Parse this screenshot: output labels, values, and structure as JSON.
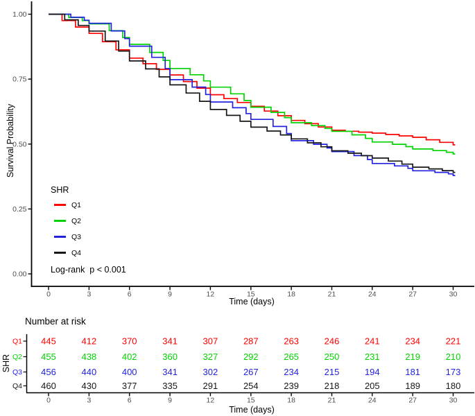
{
  "plot": {
    "y_axis": {
      "label": "Survival Probability",
      "tick_values": [
        1.0,
        0.75,
        0.5,
        0.25,
        0.0
      ],
      "tick_labels": [
        "1.00",
        "0.75",
        "0.50",
        "0.25",
        "0.00"
      ]
    },
    "x_axis": {
      "label": "Time (days)",
      "tick_values": [
        0,
        3,
        6,
        9,
        12,
        15,
        18,
        21,
        24,
        27,
        30
      ],
      "tick_labels": [
        "0",
        "3",
        "6",
        "9",
        "12",
        "15",
        "18",
        "21",
        "24",
        "27",
        "30"
      ]
    },
    "legend": {
      "title": "SHR",
      "items": [
        {
          "label": "Q1",
          "color": "#FF0000"
        },
        {
          "label": "Q2",
          "color": "#00D400"
        },
        {
          "label": "Q3",
          "color": "#2222E0"
        },
        {
          "label": "Q4",
          "color": "#161616"
        }
      ]
    },
    "annotation": "Log-rank  p < 0.001"
  },
  "risk_table": {
    "title": "Number at risk",
    "axis_label": "SHR",
    "x_label": "Time (days)",
    "times": [
      0,
      3,
      6,
      9,
      12,
      15,
      18,
      21,
      24,
      27,
      30
    ],
    "rows": [
      {
        "label": "Q1",
        "color": "#FF0000",
        "values": [
          445,
          412,
          370,
          341,
          307,
          287,
          263,
          246,
          241,
          234,
          221
        ]
      },
      {
        "label": "Q2",
        "color": "#00D400",
        "values": [
          455,
          438,
          402,
          360,
          327,
          292,
          265,
          250,
          231,
          219,
          210
        ]
      },
      {
        "label": "Q3",
        "color": "#2222E0",
        "values": [
          456,
          440,
          400,
          341,
          302,
          267,
          234,
          215,
          194,
          181,
          173
        ]
      },
      {
        "label": "Q4",
        "color": "#161616",
        "values": [
          460,
          430,
          377,
          335,
          291,
          254,
          239,
          218,
          205,
          189,
          180
        ]
      }
    ]
  },
  "chart_data": {
    "type": "line",
    "subtype": "kaplan-meier-step",
    "title": "",
    "xlabel": "Time (days)",
    "ylabel": "Survival Probability",
    "xlim": [
      0,
      30
    ],
    "ylim": [
      0.0,
      1.0
    ],
    "grid": false,
    "legend_title": "SHR",
    "legend_position": "inside-bottom-left",
    "annotation": "Log-rank p < 0.001",
    "x": [
      0,
      3,
      6,
      9,
      12,
      15,
      18,
      21,
      24,
      27,
      30
    ],
    "series": [
      {
        "name": "Q1",
        "color": "#FF0000",
        "values": [
          1.0,
          0.926,
          0.831,
          0.766,
          0.69,
          0.645,
          0.591,
          0.553,
          0.542,
          0.526,
          0.497
        ]
      },
      {
        "name": "Q2",
        "color": "#00D400",
        "values": [
          1.0,
          0.963,
          0.884,
          0.791,
          0.719,
          0.642,
          0.582,
          0.549,
          0.508,
          0.481,
          0.462
        ]
      },
      {
        "name": "Q3",
        "color": "#2222E0",
        "values": [
          1.0,
          0.965,
          0.877,
          0.748,
          0.662,
          0.595,
          0.513,
          0.471,
          0.425,
          0.397,
          0.379
        ]
      },
      {
        "name": "Q4",
        "color": "#161616",
        "values": [
          1.0,
          0.935,
          0.82,
          0.728,
          0.633,
          0.565,
          0.52,
          0.474,
          0.446,
          0.411,
          0.391
        ]
      }
    ],
    "number_at_risk": {
      "times": [
        0,
        3,
        6,
        9,
        12,
        15,
        18,
        21,
        24,
        27,
        30
      ],
      "Q1": [
        445,
        412,
        370,
        341,
        307,
        287,
        263,
        246,
        241,
        234,
        221
      ],
      "Q2": [
        455,
        438,
        402,
        360,
        327,
        292,
        265,
        250,
        231,
        219,
        210
      ],
      "Q3": [
        456,
        440,
        400,
        341,
        302,
        267,
        234,
        215,
        194,
        181,
        173
      ],
      "Q4": [
        460,
        430,
        377,
        335,
        291,
        254,
        239,
        218,
        205,
        189,
        180
      ]
    }
  }
}
